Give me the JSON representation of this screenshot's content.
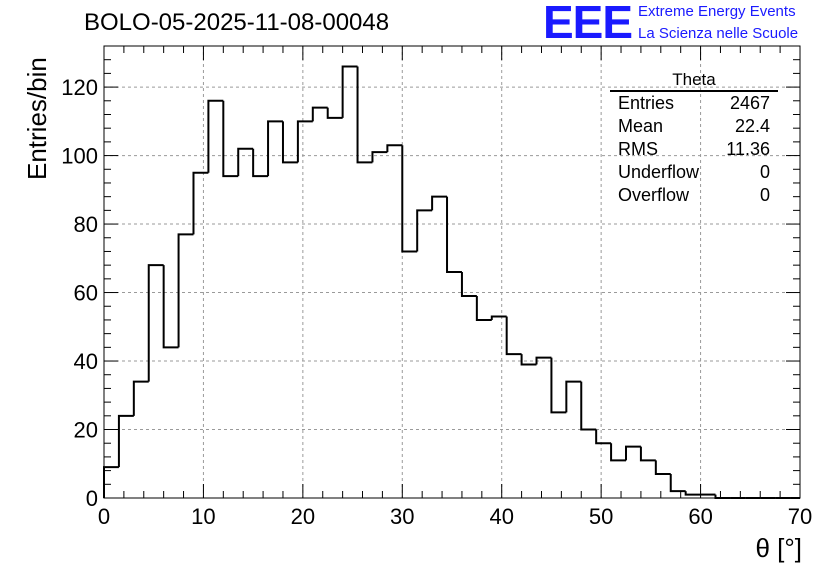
{
  "chart_data": {
    "type": "histogram",
    "title": "BOLO-05-2025-11-08-00048",
    "xlabel": "θ [°]",
    "ylabel": "Entries/bin",
    "xlim": [
      0,
      70
    ],
    "ylim": [
      0,
      132
    ],
    "xticks": [
      0,
      10,
      20,
      30,
      40,
      50,
      60,
      70
    ],
    "yticks": [
      0,
      20,
      40,
      60,
      80,
      100,
      120
    ],
    "grid": true,
    "bin_width": 1.5,
    "bin_start": 0,
    "values": [
      9,
      24,
      34,
      68,
      44,
      77,
      95,
      116,
      94,
      102,
      94,
      110,
      98,
      110,
      114,
      111,
      126,
      98,
      101,
      103,
      72,
      84,
      88,
      66,
      59,
      52,
      53,
      42,
      39,
      41,
      25,
      34,
      20,
      16,
      11,
      15,
      11,
      7,
      2,
      1,
      1,
      0,
      0,
      0,
      0,
      0,
      0
    ],
    "stats_box": {
      "name": "Theta",
      "rows": [
        {
          "label": "Entries",
          "value": "2467"
        },
        {
          "label": "Mean",
          "value": "22.4"
        },
        {
          "label": "RMS",
          "value": "11.36"
        },
        {
          "label": "Underflow",
          "value": "0"
        },
        {
          "label": "Overflow",
          "value": "0"
        }
      ]
    }
  },
  "logo": {
    "mark": "EEE",
    "line1": "Extreme Energy Events",
    "line2": "La Scienza nelle Scuole"
  },
  "colors": {
    "line": "#000000",
    "grid": "#9a9a9a",
    "logo": "#1a1aff"
  }
}
